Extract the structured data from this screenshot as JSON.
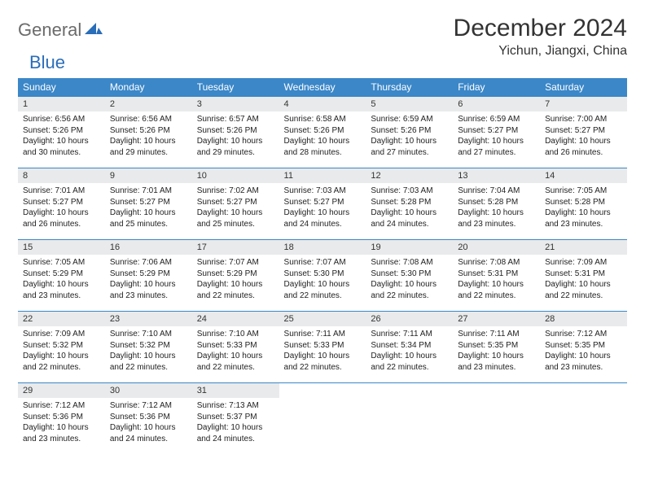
{
  "logo": {
    "general": "General",
    "blue": "Blue"
  },
  "title": "December 2024",
  "location": "Yichun, Jiangxi, China",
  "header_bg": "#3b87c8",
  "day_headers": [
    "Sunday",
    "Monday",
    "Tuesday",
    "Wednesday",
    "Thursday",
    "Friday",
    "Saturday"
  ],
  "days": [
    {
      "n": "1",
      "sr": "6:56 AM",
      "ss": "5:26 PM",
      "dl": "10 hours and 30 minutes."
    },
    {
      "n": "2",
      "sr": "6:56 AM",
      "ss": "5:26 PM",
      "dl": "10 hours and 29 minutes."
    },
    {
      "n": "3",
      "sr": "6:57 AM",
      "ss": "5:26 PM",
      "dl": "10 hours and 29 minutes."
    },
    {
      "n": "4",
      "sr": "6:58 AM",
      "ss": "5:26 PM",
      "dl": "10 hours and 28 minutes."
    },
    {
      "n": "5",
      "sr": "6:59 AM",
      "ss": "5:26 PM",
      "dl": "10 hours and 27 minutes."
    },
    {
      "n": "6",
      "sr": "6:59 AM",
      "ss": "5:27 PM",
      "dl": "10 hours and 27 minutes."
    },
    {
      "n": "7",
      "sr": "7:00 AM",
      "ss": "5:27 PM",
      "dl": "10 hours and 26 minutes."
    },
    {
      "n": "8",
      "sr": "7:01 AM",
      "ss": "5:27 PM",
      "dl": "10 hours and 26 minutes."
    },
    {
      "n": "9",
      "sr": "7:01 AM",
      "ss": "5:27 PM",
      "dl": "10 hours and 25 minutes."
    },
    {
      "n": "10",
      "sr": "7:02 AM",
      "ss": "5:27 PM",
      "dl": "10 hours and 25 minutes."
    },
    {
      "n": "11",
      "sr": "7:03 AM",
      "ss": "5:27 PM",
      "dl": "10 hours and 24 minutes."
    },
    {
      "n": "12",
      "sr": "7:03 AM",
      "ss": "5:28 PM",
      "dl": "10 hours and 24 minutes."
    },
    {
      "n": "13",
      "sr": "7:04 AM",
      "ss": "5:28 PM",
      "dl": "10 hours and 23 minutes."
    },
    {
      "n": "14",
      "sr": "7:05 AM",
      "ss": "5:28 PM",
      "dl": "10 hours and 23 minutes."
    },
    {
      "n": "15",
      "sr": "7:05 AM",
      "ss": "5:29 PM",
      "dl": "10 hours and 23 minutes."
    },
    {
      "n": "16",
      "sr": "7:06 AM",
      "ss": "5:29 PM",
      "dl": "10 hours and 23 minutes."
    },
    {
      "n": "17",
      "sr": "7:07 AM",
      "ss": "5:29 PM",
      "dl": "10 hours and 22 minutes."
    },
    {
      "n": "18",
      "sr": "7:07 AM",
      "ss": "5:30 PM",
      "dl": "10 hours and 22 minutes."
    },
    {
      "n": "19",
      "sr": "7:08 AM",
      "ss": "5:30 PM",
      "dl": "10 hours and 22 minutes."
    },
    {
      "n": "20",
      "sr": "7:08 AM",
      "ss": "5:31 PM",
      "dl": "10 hours and 22 minutes."
    },
    {
      "n": "21",
      "sr": "7:09 AM",
      "ss": "5:31 PM",
      "dl": "10 hours and 22 minutes."
    },
    {
      "n": "22",
      "sr": "7:09 AM",
      "ss": "5:32 PM",
      "dl": "10 hours and 22 minutes."
    },
    {
      "n": "23",
      "sr": "7:10 AM",
      "ss": "5:32 PM",
      "dl": "10 hours and 22 minutes."
    },
    {
      "n": "24",
      "sr": "7:10 AM",
      "ss": "5:33 PM",
      "dl": "10 hours and 22 minutes."
    },
    {
      "n": "25",
      "sr": "7:11 AM",
      "ss": "5:33 PM",
      "dl": "10 hours and 22 minutes."
    },
    {
      "n": "26",
      "sr": "7:11 AM",
      "ss": "5:34 PM",
      "dl": "10 hours and 22 minutes."
    },
    {
      "n": "27",
      "sr": "7:11 AM",
      "ss": "5:35 PM",
      "dl": "10 hours and 23 minutes."
    },
    {
      "n": "28",
      "sr": "7:12 AM",
      "ss": "5:35 PM",
      "dl": "10 hours and 23 minutes."
    },
    {
      "n": "29",
      "sr": "7:12 AM",
      "ss": "5:36 PM",
      "dl": "10 hours and 23 minutes."
    },
    {
      "n": "30",
      "sr": "7:12 AM",
      "ss": "5:36 PM",
      "dl": "10 hours and 24 minutes."
    },
    {
      "n": "31",
      "sr": "7:13 AM",
      "ss": "5:37 PM",
      "dl": "10 hours and 24 minutes."
    }
  ],
  "labels": {
    "sunrise": "Sunrise: ",
    "sunset": "Sunset: ",
    "daylight": "Daylight: "
  }
}
